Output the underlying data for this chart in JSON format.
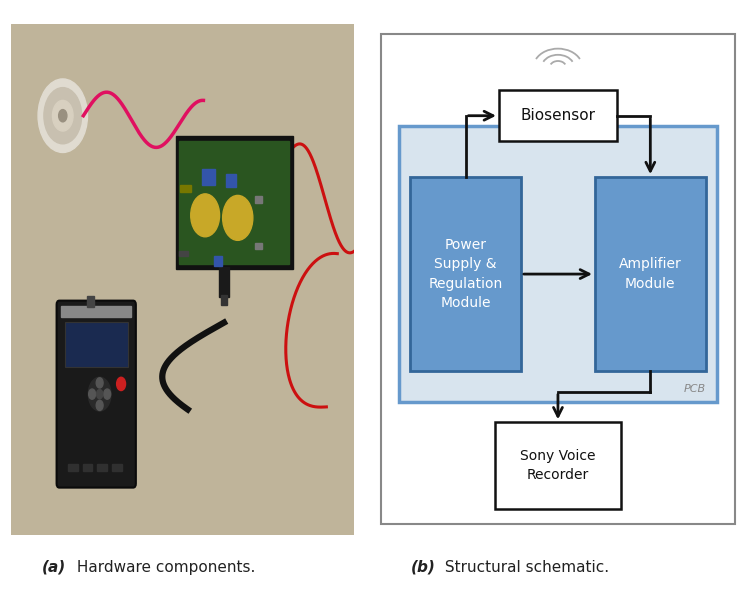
{
  "fig_width": 7.54,
  "fig_height": 5.94,
  "bg_color": "#ffffff",
  "photo_bg": "#bfb49a",
  "caption_a_bold": "(a)",
  "caption_a_rest": " Hardware components.",
  "caption_b_bold": "(b)",
  "caption_b_rest": " Structural schematic.",
  "caption_fontsize": 11,
  "schematic": {
    "bg_color": "#ffffff",
    "pcb_bg": "#d8e4ee",
    "pcb_border": "#6699cc",
    "box_fill": "#6699cc",
    "box_edge": "#336699",
    "biosensor_fill": "#ffffff",
    "biosensor_edge": "#111111",
    "sony_fill": "#ffffff",
    "sony_edge": "#111111",
    "arrow_color": "#111111",
    "text_color": "#111111",
    "pcb_label": "PCB",
    "biosensor_label": "Biosensor",
    "power_label": "Power\nSupply &\nRegulation\nModule",
    "amplifier_label": "Amplifier\nModule",
    "sony_label": "Sony Voice\nRecorder",
    "outer_border": "#555555"
  }
}
